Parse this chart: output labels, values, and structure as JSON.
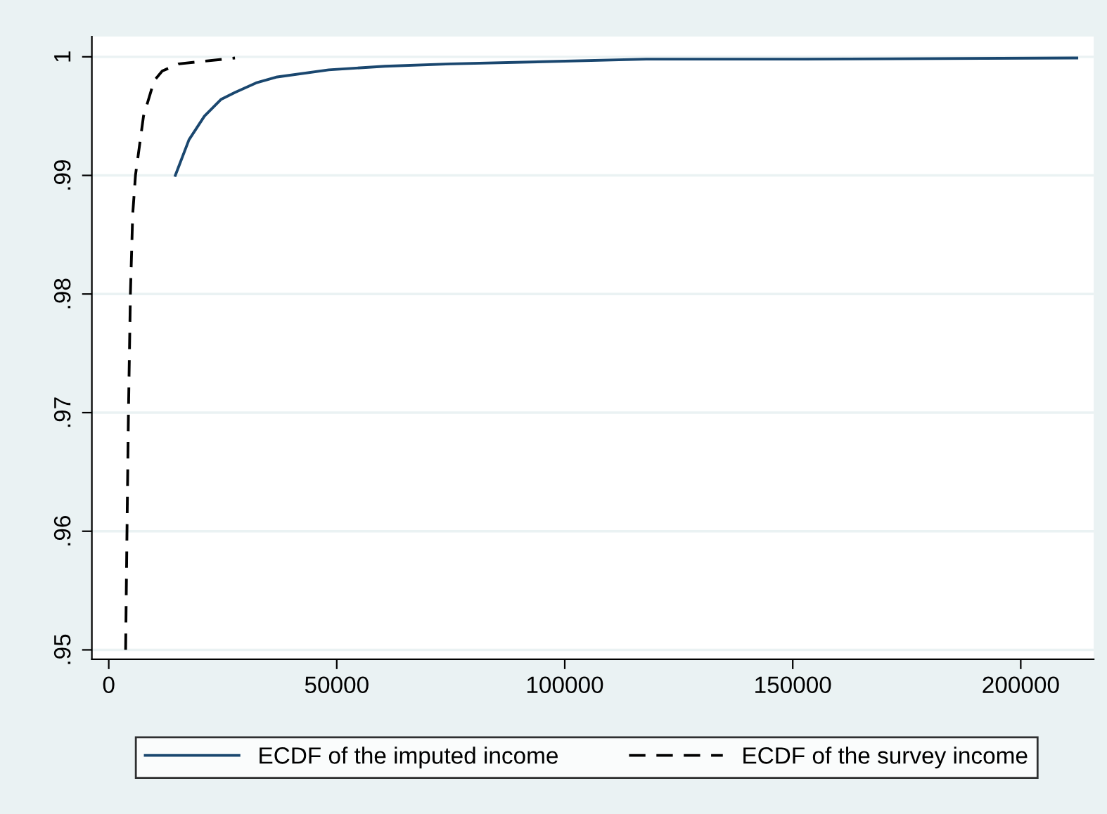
{
  "chart_data": {
    "type": "line",
    "xlim": [
      -3700,
      216000
    ],
    "ylim": [
      0.9492,
      1.0017
    ],
    "xticks": [
      0,
      50000,
      100000,
      150000,
      200000
    ],
    "yticks": [
      {
        "value": 0.95,
        "label": ".95"
      },
      {
        "value": 0.96,
        "label": ".96"
      },
      {
        "value": 0.97,
        "label": ".97"
      },
      {
        "value": 0.98,
        "label": ".98"
      },
      {
        "value": 0.99,
        "label": ".99"
      },
      {
        "value": 1,
        "label": "1"
      }
    ],
    "grid": "y",
    "legend": "bottom",
    "series": [
      {
        "name": "ECDF of the imputed income",
        "color": "#1a476f",
        "line_style": "solid",
        "x": [
          14600,
          17590,
          20990,
          24590,
          27680,
          32310,
          36940,
          48240,
          60580,
          75000,
          117900,
          152100,
          212300
        ],
        "values": [
          0.99,
          0.993,
          0.995,
          0.9964,
          0.997,
          0.9978,
          0.9983,
          0.9989,
          0.9992,
          0.9994,
          0.9998,
          0.9998,
          0.9999
        ]
      },
      {
        "name": "ECDF of the survey income",
        "color": "#000000",
        "line_style": "dashed",
        "x": [
          3700,
          4000,
          4320,
          4750,
          5250,
          5860,
          7620,
          9970,
          11730,
          15330,
          27680
        ],
        "values": [
          0.95,
          0.96,
          0.97,
          0.98,
          0.9867,
          0.99,
          0.995,
          0.998,
          0.9988,
          0.9994,
          0.9999
        ]
      }
    ]
  }
}
